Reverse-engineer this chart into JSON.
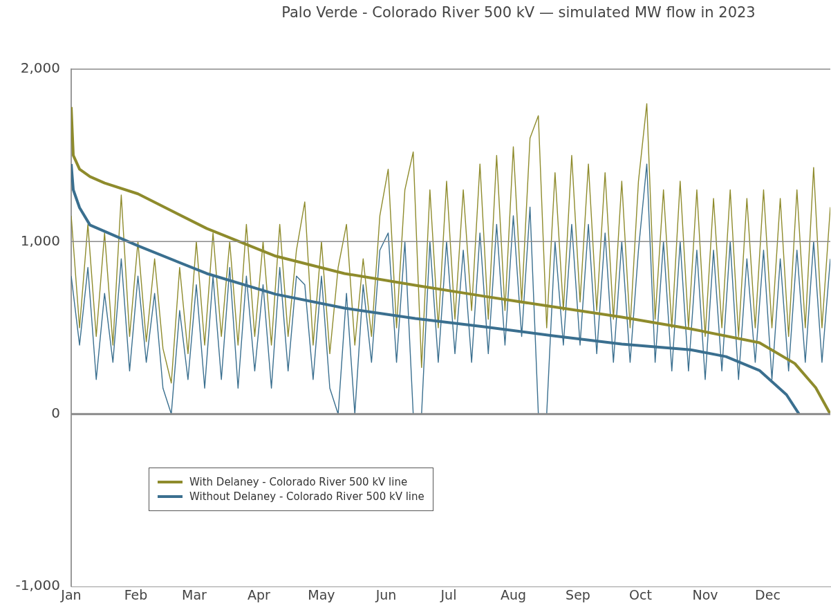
{
  "chart_data": {
    "type": "line",
    "title": "Palo Verde - Colorado River 500 kV — simulated MW flow in 2023",
    "x": [
      "2023-01-01",
      "2023-01-05",
      "2023-01-09",
      "2023-01-13",
      "2023-01-17",
      "2023-01-21",
      "2023-01-25",
      "2023-01-29",
      "2023-02-02",
      "2023-02-06",
      "2023-02-10",
      "2023-02-14",
      "2023-02-18",
      "2023-02-22",
      "2023-02-26",
      "2023-03-02",
      "2023-03-06",
      "2023-03-10",
      "2023-03-14",
      "2023-03-18",
      "2023-03-22",
      "2023-03-26",
      "2023-03-30",
      "2023-04-03",
      "2023-04-07",
      "2023-04-11",
      "2023-04-15",
      "2023-04-19",
      "2023-04-23",
      "2023-04-27",
      "2023-05-01",
      "2023-05-05",
      "2023-05-09",
      "2023-05-13",
      "2023-05-17",
      "2023-05-21",
      "2023-05-25",
      "2023-05-29",
      "2023-06-02",
      "2023-06-06",
      "2023-06-10",
      "2023-06-14",
      "2023-06-18",
      "2023-06-22",
      "2023-06-26",
      "2023-06-30",
      "2023-07-04",
      "2023-07-08",
      "2023-07-12",
      "2023-07-16",
      "2023-07-20",
      "2023-07-24",
      "2023-07-28",
      "2023-08-01",
      "2023-08-05",
      "2023-08-09",
      "2023-08-13",
      "2023-08-17",
      "2023-08-21",
      "2023-08-25",
      "2023-08-29",
      "2023-09-02",
      "2023-09-06",
      "2023-09-10",
      "2023-09-14",
      "2023-09-18",
      "2023-09-22",
      "2023-09-26",
      "2023-09-30",
      "2023-10-04",
      "2023-10-08",
      "2023-10-12",
      "2023-10-16",
      "2023-10-20",
      "2023-10-24",
      "2023-10-28",
      "2023-11-01",
      "2023-11-05",
      "2023-11-09",
      "2023-11-13",
      "2023-11-17",
      "2023-11-21",
      "2023-11-25",
      "2023-11-29",
      "2023-12-03",
      "2023-12-07",
      "2023-12-11",
      "2023-12-15",
      "2023-12-19",
      "2023-12-23",
      "2023-12-27",
      "2023-12-31"
    ],
    "series": [
      {
        "name": "With Delaney - Colorado River 500 kV line",
        "color": "#8e8b2c",
        "values": [
          1150,
          500,
          1100,
          450,
          1050,
          400,
          1270,
          450,
          1000,
          420,
          900,
          380,
          180,
          850,
          350,
          1000,
          400,
          1050,
          450,
          1000,
          400,
          1100,
          450,
          1000,
          400,
          1100,
          450,
          950,
          1230,
          400,
          1000,
          350,
          850,
          1100,
          400,
          900,
          450,
          1150,
          1420,
          500,
          1300,
          1520,
          270,
          1300,
          500,
          1350,
          550,
          1300,
          600,
          1450,
          550,
          1500,
          600,
          1550,
          650,
          1600,
          1730,
          500,
          1400,
          600,
          1500,
          650,
          1450,
          600,
          1400,
          550,
          1350,
          500,
          1350,
          1800,
          550,
          1300,
          500,
          1350,
          500,
          1300,
          450,
          1250,
          500,
          1300,
          450,
          1250,
          500,
          1300,
          500,
          1250,
          450,
          1300,
          500,
          1430,
          500,
          1200
        ]
      },
      {
        "name": "Without Delaney - Colorado River 500 kV line",
        "color": "#3a6f8f",
        "values": [
          800,
          400,
          850,
          200,
          700,
          300,
          900,
          250,
          800,
          300,
          700,
          150,
          0,
          600,
          200,
          750,
          150,
          800,
          200,
          850,
          150,
          800,
          250,
          750,
          150,
          850,
          250,
          800,
          750,
          200,
          800,
          150,
          0,
          700,
          0,
          750,
          300,
          950,
          1050,
          300,
          1000,
          0,
          0,
          1000,
          300,
          1000,
          350,
          950,
          300,
          1050,
          350,
          1100,
          400,
          1150,
          450,
          1200,
          0,
          0,
          1000,
          400,
          1100,
          400,
          1100,
          350,
          1050,
          300,
          1000,
          300,
          950,
          1450,
          300,
          1000,
          250,
          1000,
          250,
          950,
          200,
          950,
          250,
          1000,
          200,
          900,
          300,
          950,
          200,
          900,
          250,
          950,
          300,
          1000,
          300,
          900
        ]
      },
      {
        "color": "#8e8b2c",
        "x": [
          "2023-01-01",
          "2023-01-02",
          "2023-01-05",
          "2023-01-10",
          "2023-01-17",
          "2023-02-02",
          "2023-03-07",
          "2023-04-09",
          "2023-05-12",
          "2023-06-15",
          "2023-07-18",
          "2023-08-20",
          "2023-09-22",
          "2023-10-25",
          "2023-11-27",
          "2023-12-14",
          "2023-12-24",
          "2023-12-31"
        ],
        "values": [
          1780,
          1500,
          1420,
          1377,
          1340,
          1277,
          1076,
          916,
          815,
          747,
          683,
          622,
          562,
          494,
          414,
          293,
          153,
          0
        ]
      },
      {
        "color": "#3a6f8f",
        "x": [
          "2023-01-01",
          "2023-01-02",
          "2023-01-05",
          "2023-01-10",
          "2023-02-02",
          "2023-03-07",
          "2023-04-09",
          "2023-05-12",
          "2023-06-15",
          "2023-07-18",
          "2023-08-20",
          "2023-09-22",
          "2023-10-25",
          "2023-11-11",
          "2023-11-27",
          "2023-12-10",
          "2023-12-16"
        ],
        "values": [
          1450,
          1300,
          1197,
          1096,
          976,
          815,
          695,
          614,
          554,
          506,
          454,
          406,
          373,
          333,
          253,
          112,
          0
        ]
      }
    ],
    "xlim": [
      "2023-01-01",
      "2023-12-31"
    ],
    "xticks": [
      {
        "value": "2023-01-01",
        "label": "Jan"
      },
      {
        "value": "2023-02-01",
        "label": "Feb"
      },
      {
        "value": "2023-03-01",
        "label": "Mar"
      },
      {
        "value": "2023-04-01",
        "label": "Apr"
      },
      {
        "value": "2023-05-01",
        "label": "May"
      },
      {
        "value": "2023-06-01",
        "label": "Jun"
      },
      {
        "value": "2023-07-01",
        "label": "Jul"
      },
      {
        "value": "2023-08-01",
        "label": "Aug"
      },
      {
        "value": "2023-09-01",
        "label": "Sep"
      },
      {
        "value": "2023-10-01",
        "label": "Oct"
      },
      {
        "value": "2023-11-01",
        "label": "Nov"
      },
      {
        "value": "2023-12-01",
        "label": "Dec"
      }
    ],
    "ylim": [
      -1000,
      2000
    ],
    "yticks": [
      {
        "value": -1000,
        "label": "-1,000"
      },
      {
        "value": 0,
        "label": "0"
      },
      {
        "value": 1000,
        "label": "1,000"
      },
      {
        "value": 2000,
        "label": "2,000"
      }
    ],
    "ref_lines": [
      {
        "axis": "y",
        "value": 1000,
        "color": "#8a8a8a"
      },
      {
        "axis": "y",
        "value": 2000,
        "color": "#8a8a8a"
      }
    ],
    "legend": "bottom left",
    "marker": "none",
    "line_style": "solid"
  }
}
